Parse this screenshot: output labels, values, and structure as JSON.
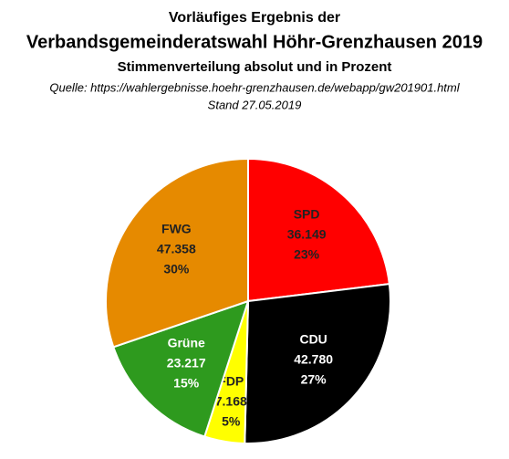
{
  "chart_data": {
    "type": "pie",
    "title": [
      "Vorläufiges Ergebnis der",
      "Verbandsgemeinderatswahl  Höhr-Grenzhausen 2019"
    ],
    "subtitle": "Stimmenverteilung absolut und in Prozent",
    "source": "Quelle: https://wahlergebnisse.hoehr-grenzhausen.de/webapp/gw201901.html",
    "date": "Stand 27.05.2019",
    "categories": [
      "SPD",
      "CDU",
      "FDP",
      "Grüne",
      "FWG"
    ],
    "values": [
      36149,
      42780,
      7168,
      23217,
      47358
    ],
    "value_labels": [
      "36.149",
      "42.780",
      "7.168",
      "23.217",
      "47.358"
    ],
    "percent_labels": [
      "23%",
      "27%",
      "5%",
      "15%",
      "30%"
    ],
    "colors": [
      "#ff0000",
      "#000000",
      "#ffff00",
      "#2e9a1e",
      "#e68a00"
    ],
    "label_colors": [
      "#222222",
      "#ffffff",
      "#222222",
      "#ffffff",
      "#222222"
    ]
  }
}
